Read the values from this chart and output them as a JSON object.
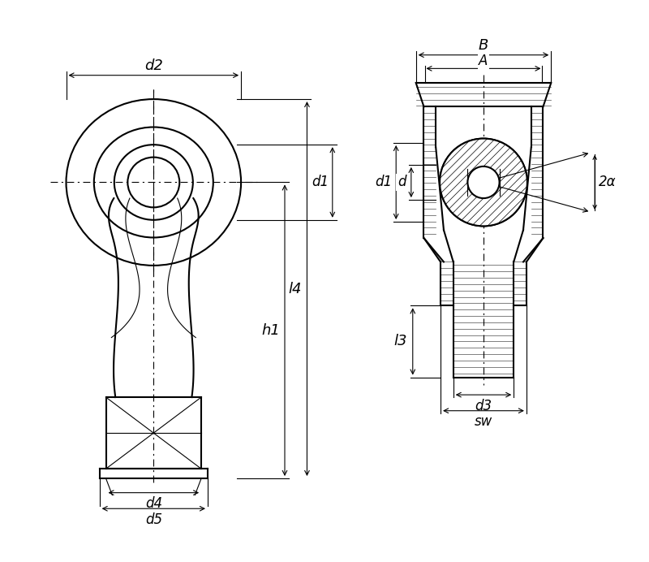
{
  "bg_color": "#ffffff",
  "line_color": "#000000",
  "dim_color": "#000000",
  "hatch_color": "#000000",
  "figsize": [
    8.0,
    6.92
  ],
  "dpi": 100,
  "labels": {
    "d2": "d2",
    "d1": "d1",
    "d": "d",
    "d3": "d3",
    "d4": "d4",
    "d5": "d5",
    "h1": "h1",
    "l4": "l4",
    "l3": "l3",
    "A": "A",
    "B": "B",
    "sw": "sw",
    "alpha": "2α"
  }
}
